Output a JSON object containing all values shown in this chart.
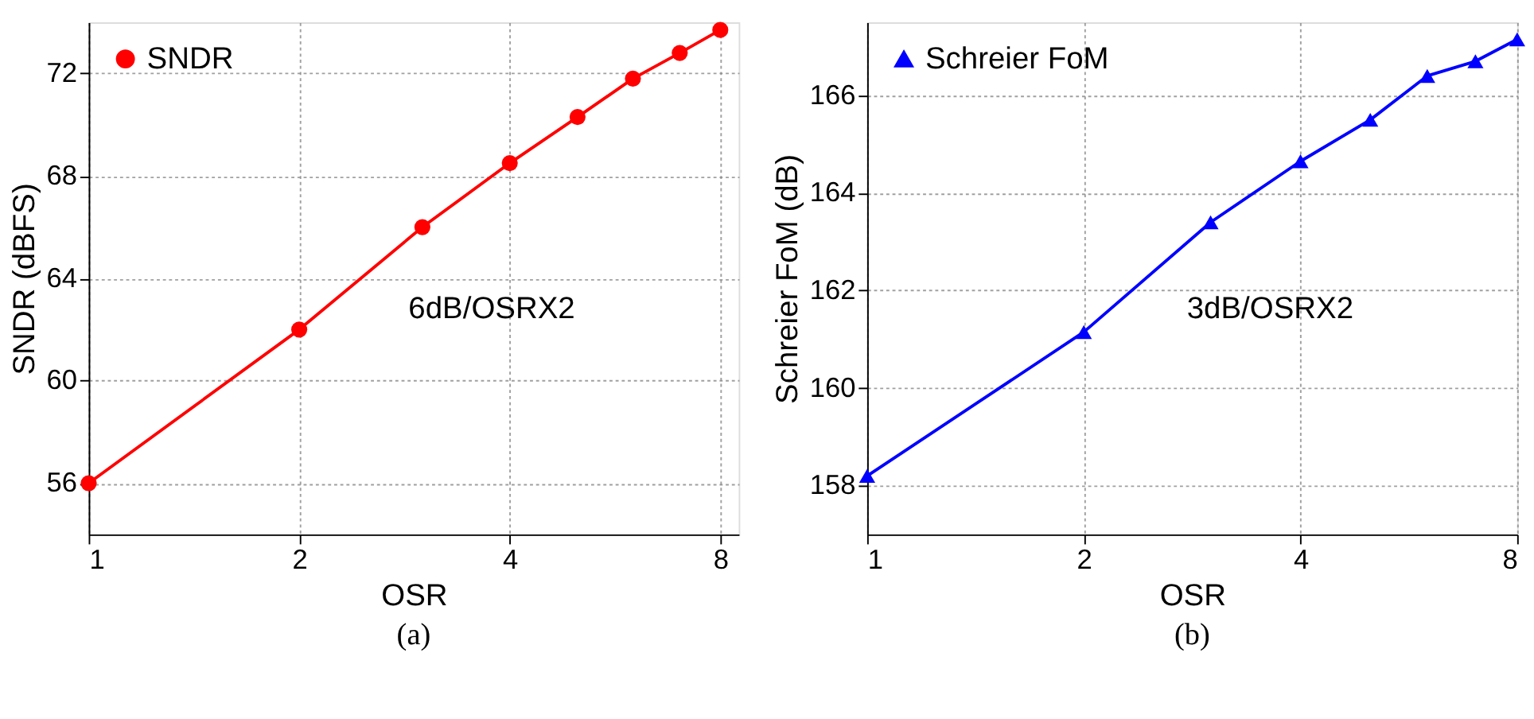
{
  "chart_data": [
    {
      "type": "line",
      "xlabel": "OSR",
      "ylabel": "SNDR (dBFS)",
      "x": [
        1,
        2,
        3,
        4,
        5,
        6,
        7,
        8
      ],
      "series": [
        {
          "name": "SNDR",
          "color": "#ff0000",
          "values": [
            56.0,
            62.0,
            66.0,
            68.5,
            70.3,
            71.8,
            72.8,
            73.7
          ]
        }
      ],
      "marker": "circle",
      "log": "x",
      "xlim": [
        1,
        8.5
      ],
      "xticks": [
        1,
        2,
        4,
        8
      ],
      "ylim": [
        54,
        74
      ],
      "yticks": [
        56,
        60,
        64,
        68,
        72
      ],
      "grid": true,
      "legend": "top left",
      "annotations": [
        "6dB/OSRX2",
        "(a)"
      ]
    },
    {
      "type": "line",
      "xlabel": "OSR",
      "ylabel": "Schreier FoM (dB)",
      "x": [
        1,
        2,
        3,
        4,
        5,
        6,
        7,
        8
      ],
      "series": [
        {
          "name": "Schreier FoM",
          "color": "#0000ff",
          "values": [
            158.2,
            161.15,
            163.4,
            164.65,
            165.5,
            166.4,
            166.7,
            167.15
          ]
        }
      ],
      "marker": "triangle",
      "log": "x",
      "xlim": [
        1,
        8
      ],
      "xticks": [
        1,
        2,
        4,
        8
      ],
      "ylim": [
        157,
        167.5
      ],
      "yticks": [
        158,
        160,
        162,
        164,
        166
      ],
      "grid": true,
      "legend": "top left",
      "annotations": [
        "3dB/OSRX2",
        "(b)"
      ]
    }
  ]
}
